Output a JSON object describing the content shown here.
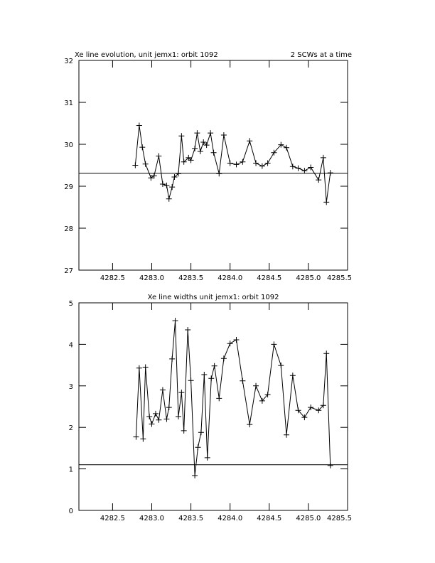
{
  "chart_data": [
    {
      "type": "line",
      "title": "Xe line evolution, unit jemx1: orbit 1092",
      "annotation": "2 SCWs at a time",
      "color": "#000000",
      "marker": "+",
      "x": [
        4282.79,
        4282.84,
        4282.88,
        4282.92,
        4282.99,
        4283.03,
        4283.09,
        4283.14,
        4283.19,
        4283.22,
        4283.26,
        4283.29,
        4283.34,
        4283.38,
        4283.41,
        4283.47,
        4283.5,
        4283.55,
        4283.58,
        4283.62,
        4283.66,
        4283.7,
        4283.75,
        4283.79,
        4283.86,
        4283.92,
        4284.0,
        4284.08,
        4284.16,
        4284.25,
        4284.33,
        4284.41,
        4284.48,
        4284.56,
        4284.65,
        4284.72,
        4284.8,
        4284.87,
        4284.95,
        4285.03,
        4285.13,
        4285.19,
        4285.23,
        4285.28
      ],
      "values": [
        29.5,
        30.45,
        29.93,
        29.53,
        29.2,
        29.25,
        29.72,
        29.05,
        29.02,
        28.7,
        28.98,
        29.22,
        29.3,
        30.2,
        29.58,
        29.68,
        29.62,
        29.9,
        30.27,
        29.83,
        30.05,
        29.98,
        30.27,
        29.8,
        29.3,
        30.22,
        29.55,
        29.52,
        29.58,
        30.08,
        29.55,
        29.48,
        29.55,
        29.8,
        29.99,
        29.92,
        29.47,
        29.43,
        29.37,
        29.45,
        29.15,
        29.68,
        28.62,
        29.32
      ],
      "hline": 29.31,
      "xlim": [
        4282.07,
        4285.5
      ],
      "ylim": [
        27,
        32
      ],
      "xticks": [
        4282.5,
        {
          "value": 4283,
          "label": "4283.0"
        },
        4283.5,
        {
          "value": 4284,
          "label": "4284.0"
        },
        4284.5,
        {
          "value": 4285,
          "label": "4285.0"
        },
        4285.5
      ],
      "yticks": [
        27,
        28,
        29,
        30,
        31,
        32
      ]
    },
    {
      "type": "line",
      "title": "Xe line widths unit jemx1: orbit 1092",
      "color": "#000000",
      "marker": "+",
      "x": [
        4282.8,
        4282.84,
        4282.89,
        4282.92,
        4282.97,
        4283.0,
        4283.05,
        4283.09,
        4283.14,
        4283.19,
        4283.22,
        4283.26,
        4283.3,
        4283.34,
        4283.38,
        4283.41,
        4283.46,
        4283.5,
        4283.55,
        4283.59,
        4283.63,
        4283.67,
        4283.71,
        4283.76,
        4283.8,
        4283.86,
        4283.92,
        4284.0,
        4284.08,
        4284.16,
        4284.25,
        4284.33,
        4284.41,
        4284.48,
        4284.56,
        4284.65,
        4284.72,
        4284.8,
        4284.87,
        4284.95,
        4285.03,
        4285.13,
        4285.19,
        4285.23,
        4285.28
      ],
      "values": [
        1.77,
        3.43,
        1.72,
        3.45,
        2.26,
        2.08,
        2.33,
        2.18,
        2.9,
        2.2,
        2.48,
        3.65,
        4.57,
        2.26,
        2.84,
        1.92,
        4.35,
        3.13,
        0.84,
        1.52,
        1.88,
        3.27,
        1.27,
        3.18,
        3.48,
        2.7,
        3.66,
        4.02,
        4.11,
        3.12,
        2.07,
        3.0,
        2.64,
        2.79,
        4.0,
        3.49,
        1.82,
        3.25,
        2.41,
        2.24,
        2.48,
        2.41,
        2.53,
        3.78,
        1.08
      ],
      "hline": 1.1,
      "xlim": [
        4282.07,
        4285.5
      ],
      "ylim": [
        0,
        5
      ],
      "xticks": [
        4282.5,
        {
          "value": 4283,
          "label": "4283.0"
        },
        4283.5,
        {
          "value": 4284,
          "label": "4284.0"
        },
        4284.5,
        {
          "value": 4285,
          "label": "4285.0"
        },
        4285.5
      ],
      "yticks": [
        0,
        1,
        2,
        3,
        4,
        5
      ]
    }
  ]
}
